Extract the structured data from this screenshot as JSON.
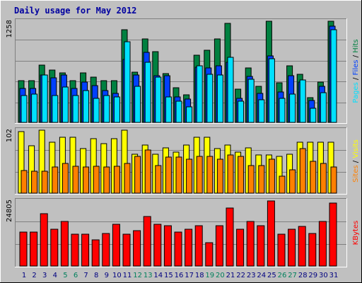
{
  "title": "Daily usage for May 2012",
  "colors": {
    "background": "#c0c0c0",
    "plot_bg": "#c0c0c0",
    "title": "#0000a0",
    "grid": "#808080",
    "hits": "#008040",
    "files": "#0040ff",
    "pages": "#00e0ff",
    "visits": "#ffff00",
    "sites": "#ff8000",
    "kbytes": "#ff0000",
    "weekend_day": "#00805c",
    "weekday": "#000080"
  },
  "chart_data": [
    {
      "type": "bar",
      "name": "hits-files-pages",
      "ymax_label": "1258",
      "ylim": [
        0,
        1258
      ],
      "categories": [
        "1",
        "2",
        "3",
        "4",
        "5",
        "6",
        "7",
        "8",
        "9",
        "10",
        "11",
        "12",
        "13",
        "14",
        "15",
        "16",
        "17",
        "18",
        "19",
        "20",
        "21",
        "22",
        "23",
        "24",
        "25",
        "26",
        "27",
        "28",
        "29",
        "30",
        "31"
      ],
      "weekend_days": [
        "5",
        "6",
        "12",
        "13",
        "19",
        "20",
        "26",
        "27"
      ],
      "legend": [
        "Pages",
        "/",
        "Files",
        "/",
        "Hits"
      ],
      "series": [
        {
          "name": "Hits",
          "values": [
            520,
            520,
            715,
            650,
            620,
            520,
            615,
            560,
            520,
            522,
            1150,
            627,
            1040,
            880,
            605,
            430,
            340,
            840,
            900,
            1040,
            1235,
            410,
            680,
            450,
            1260,
            490,
            700,
            600,
            310,
            503,
            1260
          ]
        },
        {
          "name": "Files",
          "values": [
            420,
            420,
            590,
            550,
            590,
            420,
            500,
            460,
            400,
            360,
            780,
            590,
            870,
            580,
            580,
            320,
            290,
            690,
            680,
            700,
            750,
            300,
            570,
            360,
            830,
            380,
            580,
            500,
            270,
            450,
            1200
          ]
        },
        {
          "name": "Pages",
          "values": [
            330,
            350,
            590,
            330,
            440,
            330,
            400,
            300,
            330,
            320,
            1000,
            450,
            750,
            560,
            320,
            260,
            190,
            700,
            600,
            590,
            810,
            260,
            540,
            280,
            790,
            300,
            350,
            530,
            180,
            370,
            1150
          ]
        }
      ]
    },
    {
      "type": "bar",
      "name": "visits-sites",
      "ymax_label": "102",
      "ylim": [
        0,
        102
      ],
      "categories": [
        "1",
        "2",
        "3",
        "4",
        "5",
        "6",
        "7",
        "8",
        "9",
        "10",
        "11",
        "12",
        "13",
        "14",
        "15",
        "16",
        "17",
        "18",
        "19",
        "20",
        "21",
        "22",
        "23",
        "24",
        "25",
        "26",
        "27",
        "28",
        "29",
        "30",
        "31"
      ],
      "legend": [
        "Sites",
        "/",
        "Visits"
      ],
      "series": [
        {
          "name": "Visits",
          "values": [
            100,
            77,
            102,
            83,
            90,
            90,
            72,
            88,
            80,
            88,
            102,
            63,
            78,
            63,
            73,
            67,
            78,
            90,
            90,
            72,
            78,
            67,
            73,
            62,
            62,
            60,
            63,
            82,
            82,
            82,
            82
          ]
        },
        {
          "name": "Sites",
          "values": [
            37,
            35,
            35,
            42,
            48,
            43,
            42,
            43,
            42,
            43,
            48,
            60,
            70,
            45,
            58,
            58,
            55,
            60,
            60,
            55,
            62,
            60,
            45,
            45,
            55,
            28,
            38,
            72,
            52,
            48,
            42
          ]
        }
      ]
    },
    {
      "type": "bar",
      "name": "kbytes",
      "ymax_label": "24805",
      "ylim": [
        0,
        24805
      ],
      "categories": [
        "1",
        "2",
        "3",
        "4",
        "5",
        "6",
        "7",
        "8",
        "9",
        "10",
        "11",
        "12",
        "13",
        "14",
        "15",
        "16",
        "17",
        "18",
        "19",
        "20",
        "21",
        "22",
        "23",
        "24",
        "25",
        "26",
        "27",
        "28",
        "29",
        "30",
        "31"
      ],
      "legend": [
        "KBytes"
      ],
      "series": [
        {
          "name": "KBytes",
          "values": [
            13000,
            13000,
            20000,
            14000,
            17000,
            12000,
            12000,
            10000,
            12500,
            16000,
            12000,
            13500,
            19000,
            16000,
            15500,
            13000,
            14000,
            15500,
            9000,
            15500,
            22000,
            14000,
            17000,
            15500,
            25500,
            12000,
            14000,
            15000,
            12500,
            17000,
            24000
          ]
        }
      ]
    }
  ]
}
